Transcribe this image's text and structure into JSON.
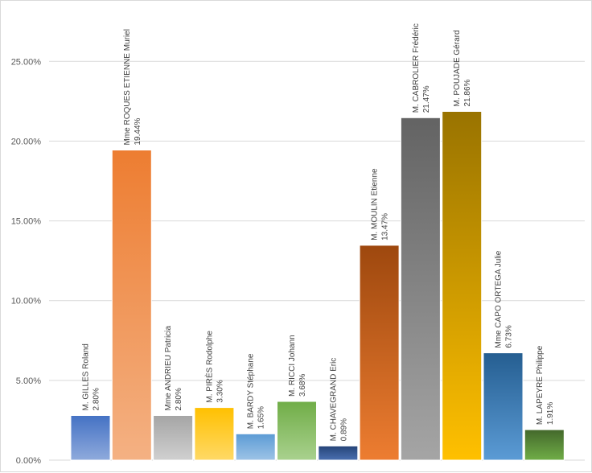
{
  "chart_data": {
    "type": "bar",
    "title": "",
    "xlabel": "",
    "ylabel": "",
    "ylim": [
      0,
      0.275
    ],
    "yticks": [
      0,
      0.05,
      0.1,
      0.15,
      0.2,
      0.25
    ],
    "ytick_labels": [
      "0.00%",
      "5.00%",
      "10.00%",
      "15.00%",
      "20.00%",
      "25.00%"
    ],
    "grid": true,
    "legend": "none",
    "categories": [
      "M. GILLES Roland",
      "Mme ROQUES ETIENNE Muriel",
      "Mme ANDRIEU Patricia",
      "M. PIRÈS Rodolphe",
      "M. BARDY Stéphane",
      "M. RICCI Johann",
      "M. CHAVEGRAND Eric",
      "M. MOULIN Etienne",
      "M. CABROLIER Frédéric",
      "M. POUJADE Gérard",
      "Mme CAPO ORTEGA Julie",
      "M. LAPEYRE Philippe"
    ],
    "values": [
      0.028,
      0.1944,
      0.028,
      0.033,
      0.0165,
      0.0368,
      0.0089,
      0.1347,
      0.2147,
      0.2186,
      0.0673,
      0.0191
    ],
    "value_labels": [
      "2.80%",
      "19.44%",
      "2.80%",
      "3.30%",
      "1.65%",
      "3.68%",
      "0.89%",
      "13.47%",
      "21.47%",
      "21.86%",
      "6.73%",
      "1.91%"
    ],
    "bar_colors": [
      [
        "#4472c4",
        "#8faadc"
      ],
      [
        "#ed7d31",
        "#f4b183"
      ],
      [
        "#a5a5a5",
        "#d0d0d0"
      ],
      [
        "#ffc000",
        "#ffd966"
      ],
      [
        "#5b9bd5",
        "#9dc3e6"
      ],
      [
        "#70ad47",
        "#a9d18e"
      ],
      [
        "#264478",
        "#4a6fb0"
      ],
      [
        "#9e480e",
        "#ed7d31"
      ],
      [
        "#636363",
        "#a5a5a5"
      ],
      [
        "#997300",
        "#ffc000"
      ],
      [
        "#255e91",
        "#5b9bd5"
      ],
      [
        "#43682b",
        "#70ad47"
      ]
    ]
  }
}
